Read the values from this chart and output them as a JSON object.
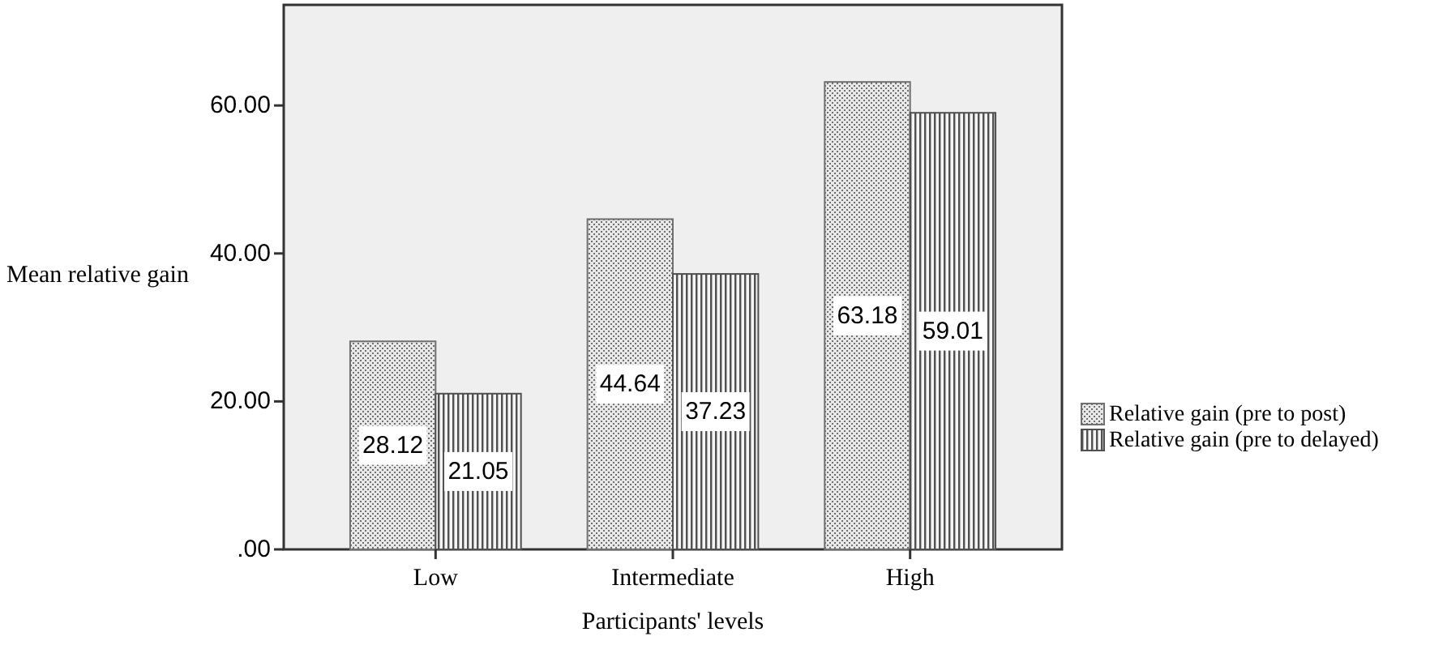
{
  "chart_data": {
    "type": "bar",
    "xlabel": "Participants' levels",
    "ylabel": "Mean relative gain",
    "categories": [
      "Low",
      "Intermediate",
      "High"
    ],
    "series": [
      {
        "name": "Relative gain (pre to post)",
        "color": "#707070",
        "values": [
          28.12,
          44.64,
          63.18
        ]
      },
      {
        "name": "Relative gain (pre to delayed)",
        "color": "#505050",
        "values": [
          21.05,
          37.23,
          59.01
        ]
      }
    ],
    "ylim": [
      0,
      73.6
    ],
    "yticks": [
      {
        "value": 0,
        "label": ".00"
      },
      {
        "value": 20,
        "label": "20.00"
      },
      {
        "value": 40,
        "label": "40.00"
      },
      {
        "value": 60,
        "label": "60.00"
      }
    ],
    "data_labels": true,
    "grid": false,
    "legend": "right"
  }
}
